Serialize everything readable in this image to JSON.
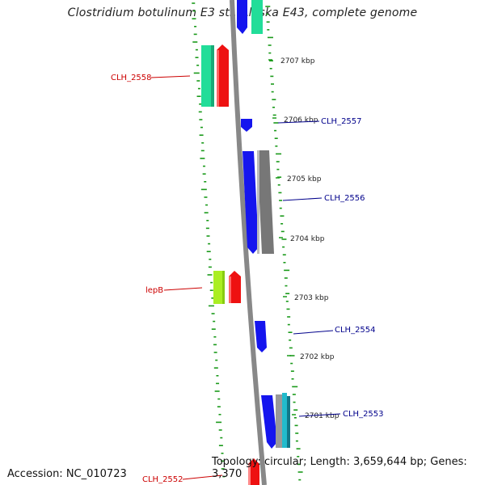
{
  "title": "Clostridium botulinum E3 str. Alaska E43, complete genome",
  "accession": "Accession: NC_010723",
  "topology": "Topology: circular; Length: 3,659,644 bp; Genes: 3,370",
  "colors": {
    "backbone": "#888888",
    "gc_ticks": "#1a9a1a",
    "red": "#ee1111",
    "blue": "#1515ee",
    "teal": "#22dd99",
    "gray": "#777777",
    "lime": "#aaee22",
    "cyan": "#22bbcc",
    "label_left": "#cc0000",
    "label_right": "#00008b"
  },
  "kbp_labels": [
    "2707 kbp",
    "2706 kbp",
    "2705 kbp",
    "2704 kbp",
    "2703 kbp",
    "2702 kbp",
    "2701 kbp"
  ],
  "gene_labels_left": [
    "CLH_2558",
    "lepB",
    "CLH_2552"
  ],
  "gene_labels_right": [
    "CLH_2557",
    "CLH_2556",
    "CLH_2554",
    "CLH_2553"
  ]
}
